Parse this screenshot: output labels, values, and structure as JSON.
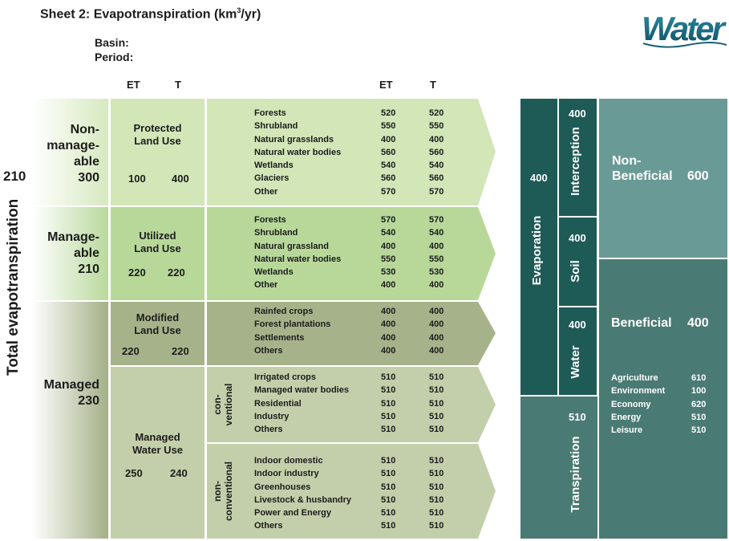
{
  "header": {
    "title": "Sheet 2: Evapotranspiration (km",
    "title_sup": "3",
    "title_end": "/yr)",
    "basin_label": "Basin:",
    "period_label": "Period:",
    "col_et": "ET",
    "col_t": "T",
    "col_et2": "ET",
    "col_t2": "T"
  },
  "logo": {
    "text": "Water"
  },
  "total": {
    "label": "Total evapotranspiration",
    "value": "210"
  },
  "categories": [
    {
      "name_lines": [
        "Non-",
        "manage-",
        "able"
      ],
      "value": "300"
    },
    {
      "name_lines": [
        "Manage-",
        "able"
      ],
      "value": "210"
    },
    {
      "name_lines": [
        "Managed"
      ],
      "value": "230"
    }
  ],
  "land_use": [
    {
      "name_lines": [
        "Protected",
        "Land Use"
      ],
      "et": "100",
      "t": "400"
    },
    {
      "name_lines": [
        "Utilized",
        "Land Use"
      ],
      "et": "220",
      "t": "220"
    },
    {
      "name_lines": [
        "Modified",
        "Land Use"
      ],
      "et": "220",
      "t": "220"
    },
    {
      "name_lines": [
        "Managed",
        "Water Use"
      ],
      "et": "250",
      "t": "240"
    }
  ],
  "sub_groups": [
    {
      "lines": [
        "con-",
        "ventional"
      ]
    },
    {
      "lines": [
        "non-",
        "conventional"
      ]
    }
  ],
  "classes": [
    {
      "rows": [
        {
          "name": "Forests",
          "et": "520",
          "t": "520"
        },
        {
          "name": "Shrubland",
          "et": "550",
          "t": "550"
        },
        {
          "name": "Natural grasslands",
          "et": "400",
          "t": "400"
        },
        {
          "name": "Natural water bodies",
          "et": "560",
          "t": "560"
        },
        {
          "name": "Wetlands",
          "et": "540",
          "t": "540"
        },
        {
          "name": "Glaciers",
          "et": "560",
          "t": "560"
        },
        {
          "name": "Other",
          "et": "570",
          "t": "570"
        }
      ]
    },
    {
      "rows": [
        {
          "name": "Forests",
          "et": "570",
          "t": "570"
        },
        {
          "name": "Shrubland",
          "et": "540",
          "t": "540"
        },
        {
          "name": "Natural grassland",
          "et": "400",
          "t": "400"
        },
        {
          "name": "Natural water bodies",
          "et": "550",
          "t": "550"
        },
        {
          "name": "Wetlands",
          "et": "530",
          "t": "530"
        },
        {
          "name": "Other",
          "et": "400",
          "t": "400"
        }
      ]
    },
    {
      "rows": [
        {
          "name": "Rainfed crops",
          "et": "400",
          "t": "400"
        },
        {
          "name": "Forest plantations",
          "et": "400",
          "t": "400"
        },
        {
          "name": "Settlements",
          "et": "400",
          "t": "400"
        },
        {
          "name": "Others",
          "et": "400",
          "t": "400"
        }
      ]
    },
    {
      "rows": [
        {
          "name": "Irrigated crops",
          "et": "510",
          "t": "510"
        },
        {
          "name": "Managed water bodies",
          "et": "510",
          "t": "510"
        },
        {
          "name": "Residential",
          "et": "510",
          "t": "510"
        },
        {
          "name": "Industry",
          "et": "510",
          "t": "510"
        },
        {
          "name": "Others",
          "et": "510",
          "t": "510"
        }
      ]
    },
    {
      "rows": [
        {
          "name": "Indoor domestic",
          "et": "510",
          "t": "510"
        },
        {
          "name": "Indoor industry",
          "et": "510",
          "t": "510"
        },
        {
          "name": "Greenhouses",
          "et": "510",
          "t": "510"
        },
        {
          "name": "Livestock & husbandry",
          "et": "510",
          "t": "510"
        },
        {
          "name": "Power and Energy",
          "et": "510",
          "t": "510"
        },
        {
          "name": "Others",
          "et": "510",
          "t": "510"
        }
      ]
    }
  ],
  "flows": {
    "evaporation": {
      "label": "Evaporation",
      "value": "400"
    },
    "interception": {
      "label": "Interception",
      "value": "400"
    },
    "soil": {
      "label": "Soil",
      "value": "400"
    },
    "water": {
      "label": "Water",
      "value": "400"
    },
    "transpiration": {
      "label": "Transpiration",
      "value": "510"
    },
    "non_beneficial": {
      "label_lines": [
        "Non-",
        "Beneficial"
      ],
      "value": "600"
    },
    "beneficial": {
      "label": "Beneficial",
      "value": "400",
      "items": [
        {
          "name": "Agriculture",
          "value": "610"
        },
        {
          "name": "Environment",
          "value": "100"
        },
        {
          "name": "Economy",
          "value": "620"
        },
        {
          "name": "Energy",
          "value": "510"
        },
        {
          "name": "Leisure",
          "value": "510"
        }
      ]
    }
  },
  "colors": {
    "light_green": "#d2e6b8",
    "mid_green": "#b8d89a",
    "olive": "#a6b38a",
    "sage": "#c3cfaa",
    "dark_teal": "#1e5a56",
    "teal_mid": "#4a7a74",
    "teal_light": "#6a9a96"
  }
}
